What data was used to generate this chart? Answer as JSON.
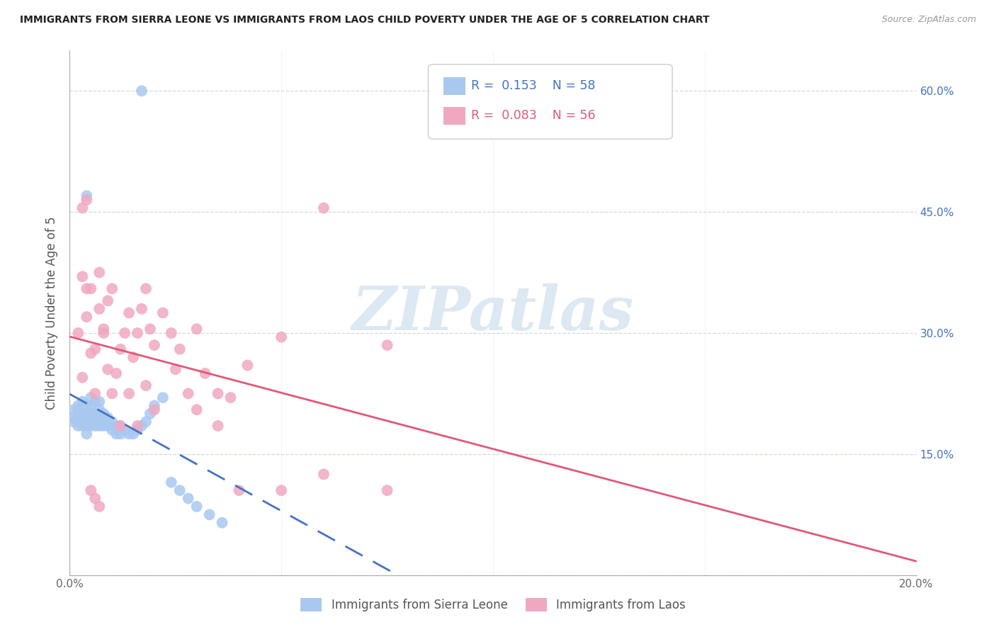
{
  "title": "IMMIGRANTS FROM SIERRA LEONE VS IMMIGRANTS FROM LAOS CHILD POVERTY UNDER THE AGE OF 5 CORRELATION CHART",
  "source": "Source: ZipAtlas.com",
  "ylabel": "Child Poverty Under the Age of 5",
  "xlim": [
    0.0,
    0.2
  ],
  "ylim": [
    0.0,
    0.65
  ],
  "xtick_positions": [
    0.0,
    0.05,
    0.1,
    0.15,
    0.2
  ],
  "xticklabels": [
    "0.0%",
    "",
    "",
    "",
    "20.0%"
  ],
  "ytick_positions": [
    0.0,
    0.15,
    0.3,
    0.45,
    0.6
  ],
  "yticklabels_right": [
    "",
    "15.0%",
    "30.0%",
    "45.0%",
    "60.0%"
  ],
  "legend_R1": "0.153",
  "legend_N1": "58",
  "legend_R2": "0.083",
  "legend_N2": "56",
  "color_sierra": "#a8c8f0",
  "color_laos": "#f0a8c0",
  "trendline_sierra_color": "#4472c4",
  "trendline_laos_color": "#e05878",
  "watermark": "ZIPatlas",
  "watermark_color": "#dce8f2",
  "grid_color": "#d0d8e0",
  "title_color": "#222222",
  "source_color": "#999999",
  "axis_label_color": "#555555",
  "tick_label_color_blue": "#4472c4",
  "tick_label_color_gray": "#666666",
  "bottom_label_color": "#555555",
  "legend_label1": "Immigrants from Sierra Leone",
  "legend_label2": "Immigrants from Laos",
  "sierra_x": [
    0.001,
    0.001,
    0.001,
    0.002,
    0.002,
    0.002,
    0.002,
    0.003,
    0.003,
    0.003,
    0.003,
    0.003,
    0.004,
    0.004,
    0.004,
    0.004,
    0.004,
    0.005,
    0.005,
    0.005,
    0.005,
    0.005,
    0.006,
    0.006,
    0.006,
    0.006,
    0.007,
    0.007,
    0.007,
    0.007,
    0.008,
    0.008,
    0.008,
    0.009,
    0.009,
    0.01,
    0.01,
    0.011,
    0.011,
    0.012,
    0.012,
    0.013,
    0.014,
    0.015,
    0.016,
    0.017,
    0.018,
    0.019,
    0.02,
    0.022,
    0.024,
    0.026,
    0.028,
    0.03,
    0.033,
    0.036,
    0.004,
    0.017
  ],
  "sierra_y": [
    0.205,
    0.195,
    0.19,
    0.21,
    0.205,
    0.195,
    0.185,
    0.2,
    0.215,
    0.195,
    0.185,
    0.2,
    0.21,
    0.2,
    0.195,
    0.185,
    0.175,
    0.22,
    0.21,
    0.2,
    0.195,
    0.185,
    0.215,
    0.2,
    0.195,
    0.185,
    0.215,
    0.205,
    0.195,
    0.185,
    0.2,
    0.195,
    0.185,
    0.195,
    0.185,
    0.19,
    0.18,
    0.185,
    0.175,
    0.185,
    0.175,
    0.18,
    0.175,
    0.175,
    0.18,
    0.185,
    0.19,
    0.2,
    0.21,
    0.22,
    0.115,
    0.105,
    0.095,
    0.085,
    0.075,
    0.065,
    0.47,
    0.6
  ],
  "laos_x": [
    0.002,
    0.003,
    0.004,
    0.005,
    0.006,
    0.007,
    0.008,
    0.009,
    0.01,
    0.011,
    0.012,
    0.013,
    0.014,
    0.015,
    0.016,
    0.017,
    0.018,
    0.019,
    0.02,
    0.022,
    0.024,
    0.026,
    0.028,
    0.03,
    0.032,
    0.035,
    0.038,
    0.042,
    0.05,
    0.06,
    0.003,
    0.004,
    0.005,
    0.006,
    0.007,
    0.008,
    0.009,
    0.01,
    0.012,
    0.014,
    0.016,
    0.018,
    0.02,
    0.025,
    0.03,
    0.035,
    0.04,
    0.05,
    0.06,
    0.075,
    0.003,
    0.004,
    0.005,
    0.006,
    0.007,
    0.075
  ],
  "laos_y": [
    0.3,
    0.37,
    0.32,
    0.355,
    0.28,
    0.33,
    0.3,
    0.34,
    0.355,
    0.25,
    0.28,
    0.3,
    0.325,
    0.27,
    0.3,
    0.33,
    0.355,
    0.305,
    0.285,
    0.325,
    0.3,
    0.28,
    0.225,
    0.305,
    0.25,
    0.225,
    0.22,
    0.26,
    0.295,
    0.455,
    0.245,
    0.355,
    0.275,
    0.225,
    0.375,
    0.305,
    0.255,
    0.225,
    0.185,
    0.225,
    0.185,
    0.235,
    0.205,
    0.255,
    0.205,
    0.185,
    0.105,
    0.105,
    0.125,
    0.285,
    0.455,
    0.465,
    0.105,
    0.095,
    0.085,
    0.105
  ]
}
